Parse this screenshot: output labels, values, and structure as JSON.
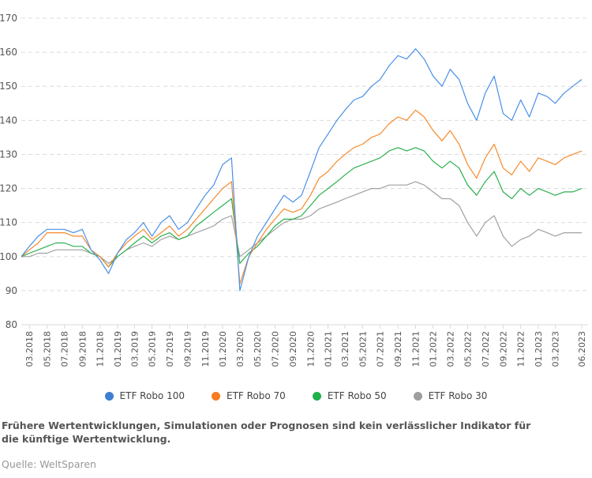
{
  "chart_data": {
    "type": "line",
    "title": "",
    "xlabel": "",
    "ylabel": "",
    "ylim": [
      80,
      170
    ],
    "yticks": [
      80,
      90,
      100,
      110,
      120,
      130,
      140,
      150,
      160,
      170
    ],
    "xlim": [
      "2018-02-01",
      "2023-06-01"
    ],
    "xticks": [
      "03.2018",
      "05.2018",
      "07.2018",
      "09.2018",
      "11.2018",
      "01.2019",
      "03.2019",
      "05.2019",
      "07.2019",
      "09.2019",
      "11.2019",
      "01.2020",
      "03.2020",
      "05.2020",
      "07.2020",
      "09.2020",
      "11.2020",
      "01.2021",
      "03.2021",
      "05.2021",
      "07.2021",
      "09.2021",
      "11.2021",
      "01.2022",
      "03.2022",
      "05.2022",
      "07.2022",
      "09.2022",
      "11.2022",
      "01.2023",
      "03.2023",
      "06.2023"
    ],
    "grid": "horizontal dashed",
    "legend": "bottom",
    "x": [
      "2018-02",
      "2018-03",
      "2018-04",
      "2018-05",
      "2018-06",
      "2018-07",
      "2018-08",
      "2018-09",
      "2018-10",
      "2018-11",
      "2018-12",
      "2019-01",
      "2019-02",
      "2019-03",
      "2019-04",
      "2019-05",
      "2019-06",
      "2019-07",
      "2019-08",
      "2019-09",
      "2019-10",
      "2019-11",
      "2019-12",
      "2020-01",
      "2020-02",
      "2020-03",
      "2020-04",
      "2020-05",
      "2020-06",
      "2020-07",
      "2020-08",
      "2020-09",
      "2020-10",
      "2020-11",
      "2020-12",
      "2021-01",
      "2021-02",
      "2021-03",
      "2021-04",
      "2021-05",
      "2021-06",
      "2021-07",
      "2021-08",
      "2021-09",
      "2021-10",
      "2021-11",
      "2021-12",
      "2022-01",
      "2022-02",
      "2022-03",
      "2022-04",
      "2022-05",
      "2022-06",
      "2022-07",
      "2022-08",
      "2022-09",
      "2022-10",
      "2022-11",
      "2022-12",
      "2023-01",
      "2023-02",
      "2023-03",
      "2023-04",
      "2023-05",
      "2023-06"
    ],
    "series": [
      {
        "name": "ETF Robo 100",
        "color": "#4a8fe8",
        "values": [
          100,
          103,
          106,
          108,
          108,
          108,
          107,
          108,
          102,
          99,
          95,
          101,
          105,
          107,
          110,
          106,
          110,
          112,
          108,
          110,
          114,
          118,
          121,
          127,
          129,
          90,
          100,
          106,
          110,
          114,
          118,
          116,
          118,
          125,
          132,
          136,
          140,
          143,
          146,
          147,
          150,
          152,
          156,
          159,
          158,
          161,
          158,
          153,
          150,
          155,
          152,
          145,
          140,
          148,
          153,
          142,
          140,
          146,
          141,
          148,
          147,
          145,
          148,
          150,
          152
        ]
      },
      {
        "name": "ETF Robo 70",
        "color": "#f58a2c",
        "values": [
          100,
          102,
          104,
          107,
          107,
          107,
          106,
          106,
          102,
          100,
          97,
          101,
          104,
          106,
          108,
          105,
          107,
          109,
          106,
          108,
          111,
          114,
          117,
          120,
          122,
          92,
          100,
          104,
          108,
          111,
          114,
          113,
          114,
          118,
          123,
          125,
          128,
          130,
          132,
          133,
          135,
          136,
          139,
          141,
          140,
          143,
          141,
          137,
          134,
          137,
          133,
          127,
          123,
          129,
          133,
          126,
          124,
          128,
          125,
          129,
          128,
          127,
          129,
          130,
          131
        ]
      },
      {
        "name": "ETF Robo 50",
        "color": "#2ab04e",
        "values": [
          100,
          101,
          102,
          103,
          104,
          104,
          103,
          103,
          101,
          100,
          97,
          100,
          102,
          104,
          106,
          104,
          106,
          107,
          105,
          106,
          109,
          111,
          113,
          115,
          117,
          98,
          101,
          103,
          106,
          109,
          111,
          111,
          112,
          115,
          118,
          120,
          122,
          124,
          126,
          127,
          128,
          129,
          131,
          132,
          131,
          132,
          131,
          128,
          126,
          128,
          126,
          121,
          118,
          122,
          125,
          119,
          117,
          120,
          118,
          120,
          119,
          118,
          119,
          119,
          120
        ]
      },
      {
        "name": "ETF Robo 30",
        "color": "#a0a0a0",
        "values": [
          100,
          100,
          101,
          101,
          102,
          102,
          102,
          102,
          101,
          100,
          98,
          100,
          102,
          103,
          104,
          103,
          105,
          106,
          105,
          106,
          107,
          108,
          109,
          111,
          112,
          100,
          102,
          104,
          106,
          108,
          110,
          111,
          111,
          112,
          114,
          115,
          116,
          117,
          118,
          119,
          120,
          120,
          121,
          121,
          121,
          122,
          121,
          119,
          117,
          117,
          115,
          110,
          106,
          110,
          112,
          106,
          103,
          105,
          106,
          108,
          107,
          106,
          107,
          107,
          107
        ]
      }
    ]
  },
  "legend": {
    "items": [
      {
        "label": "ETF Robo 100",
        "color": "#3d7fd0"
      },
      {
        "label": "ETF Robo 70",
        "color": "#f57c20"
      },
      {
        "label": "ETF Robo 50",
        "color": "#1fb04a"
      },
      {
        "label": "ETF Robo 30",
        "color": "#9e9e9e"
      }
    ]
  },
  "footer": {
    "note": "Frühere Wertentwicklungen, Simulationen oder Prognosen sind kein verlässlicher Indikator für die künftige Wertentwicklung.",
    "source": "Quelle: WeltSparen"
  }
}
